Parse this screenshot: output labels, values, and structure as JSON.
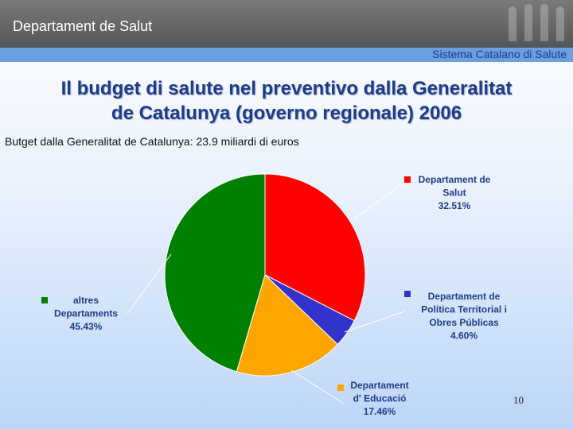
{
  "header": {
    "department": "Departament de Salut",
    "system": "Sistema Catalano di Salute"
  },
  "slide": {
    "title_line1": "Il budget di salute nel  preventivo dalla Generalitat",
    "title_line2": "de Catalunya (governo regionale) 2006",
    "subtitle": "Butget dalla Generalitat de Catalunya: 23.9 miliardi di euros",
    "page_number": "10"
  },
  "chart_data": {
    "type": "pie",
    "title": "",
    "slices": [
      {
        "label_lines": [
          "Departament de",
          "Salut"
        ],
        "value": 32.51,
        "value_label": "32.51%",
        "color": "#ff0000"
      },
      {
        "label_lines": [
          "Departament de",
          "Política Territorial i",
          "Obres Públicas"
        ],
        "value": 4.6,
        "value_label": "4.60%",
        "color": "#3333cc"
      },
      {
        "label_lines": [
          "Departament",
          "d' Educació"
        ],
        "value": 17.46,
        "value_label": "17.46%",
        "color": "#ffa500"
      },
      {
        "label_lines": [
          "altres",
          "Departaments"
        ],
        "value": 45.43,
        "value_label": "45.43%",
        "color": "#008000"
      }
    ]
  }
}
